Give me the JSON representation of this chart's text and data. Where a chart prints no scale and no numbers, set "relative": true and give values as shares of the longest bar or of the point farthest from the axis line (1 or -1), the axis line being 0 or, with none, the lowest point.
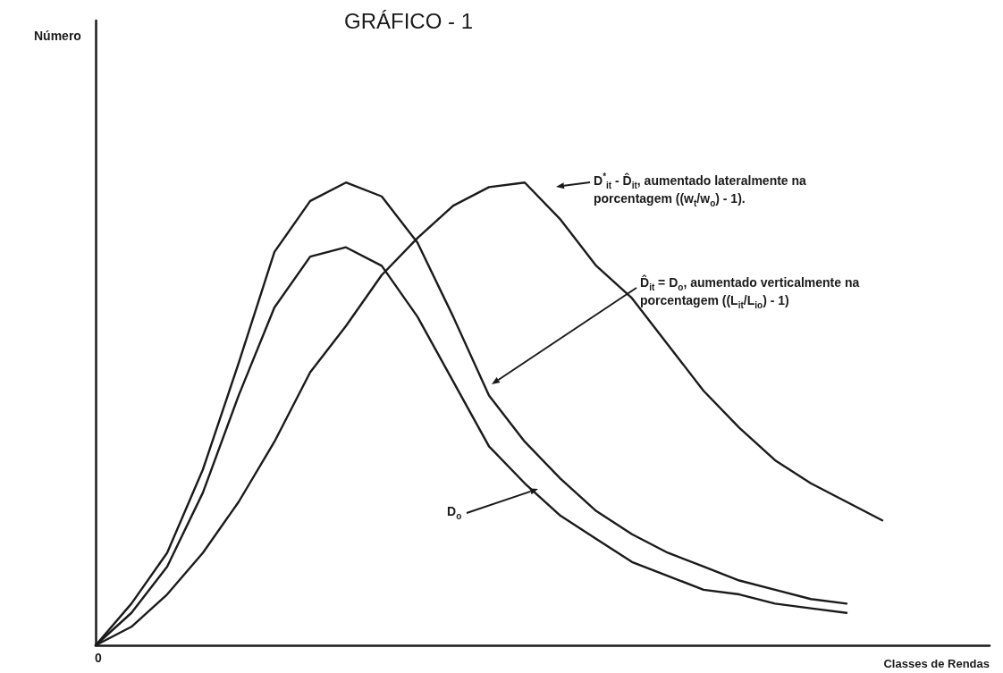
{
  "chart_data": {
    "type": "line",
    "title": "GRÁFICO - 1",
    "xlabel": "Classes de Rendas",
    "relative": true,
    "marker": "none",
    "line_style": "solid",
    "categories": [
      null,
      null,
      null,
      null,
      null,
      null,
      null,
      null,
      null,
      null,
      null,
      null,
      null,
      null,
      null,
      null,
      null,
      null,
      null,
      null,
      null,
      null,
      null,
      null,
      null,
      null
    ],
    "series": [
      {
        "color": "#1a1a1a",
        "values": [
          0,
          0.07,
          0.17,
          0.33,
          0.54,
          0.73,
          0.84,
          0.86,
          0.82,
          0.71,
          0.57,
          0.43,
          0.35,
          0.28,
          0.23,
          0.18,
          0.15,
          0.12,
          0.11,
          0.09,
          0.08,
          0.07,
          null,
          null,
          null,
          null
        ]
      },
      {
        "color": "#1a1a1a",
        "values": [
          0,
          0.09,
          0.2,
          0.38,
          0.61,
          0.85,
          0.96,
          1.0,
          0.97,
          0.87,
          0.71,
          0.54,
          0.44,
          0.36,
          0.29,
          0.24,
          0.2,
          0.17,
          0.14,
          0.12,
          0.1,
          0.09,
          null,
          null,
          null,
          null
        ]
      },
      {
        "color": "#1a1a1a",
        "values": [
          0,
          0.04,
          0.11,
          0.2,
          0.31,
          0.44,
          0.59,
          0.69,
          0.8,
          0.88,
          0.95,
          0.99,
          1.0,
          0.92,
          0.82,
          0.75,
          0.65,
          0.55,
          0.47,
          0.4,
          0.35,
          0.31,
          0.27,
          null,
          null,
          null
        ]
      }
    ],
    "annotations": [
      "D$^{*}$$_{it}$ - D̂$_{it}$, aumentado lateralmente na porcentagem ((w$_{t}$/w$_{o}$) - 1).",
      "D̂$_{it}$ = D$_{o}$, aumentado verticalmente na porcentagem ((L$_{it}$/L$_{io}$) - 1)",
      "D$_{o}$",
      "0",
      "Número"
    ]
  }
}
